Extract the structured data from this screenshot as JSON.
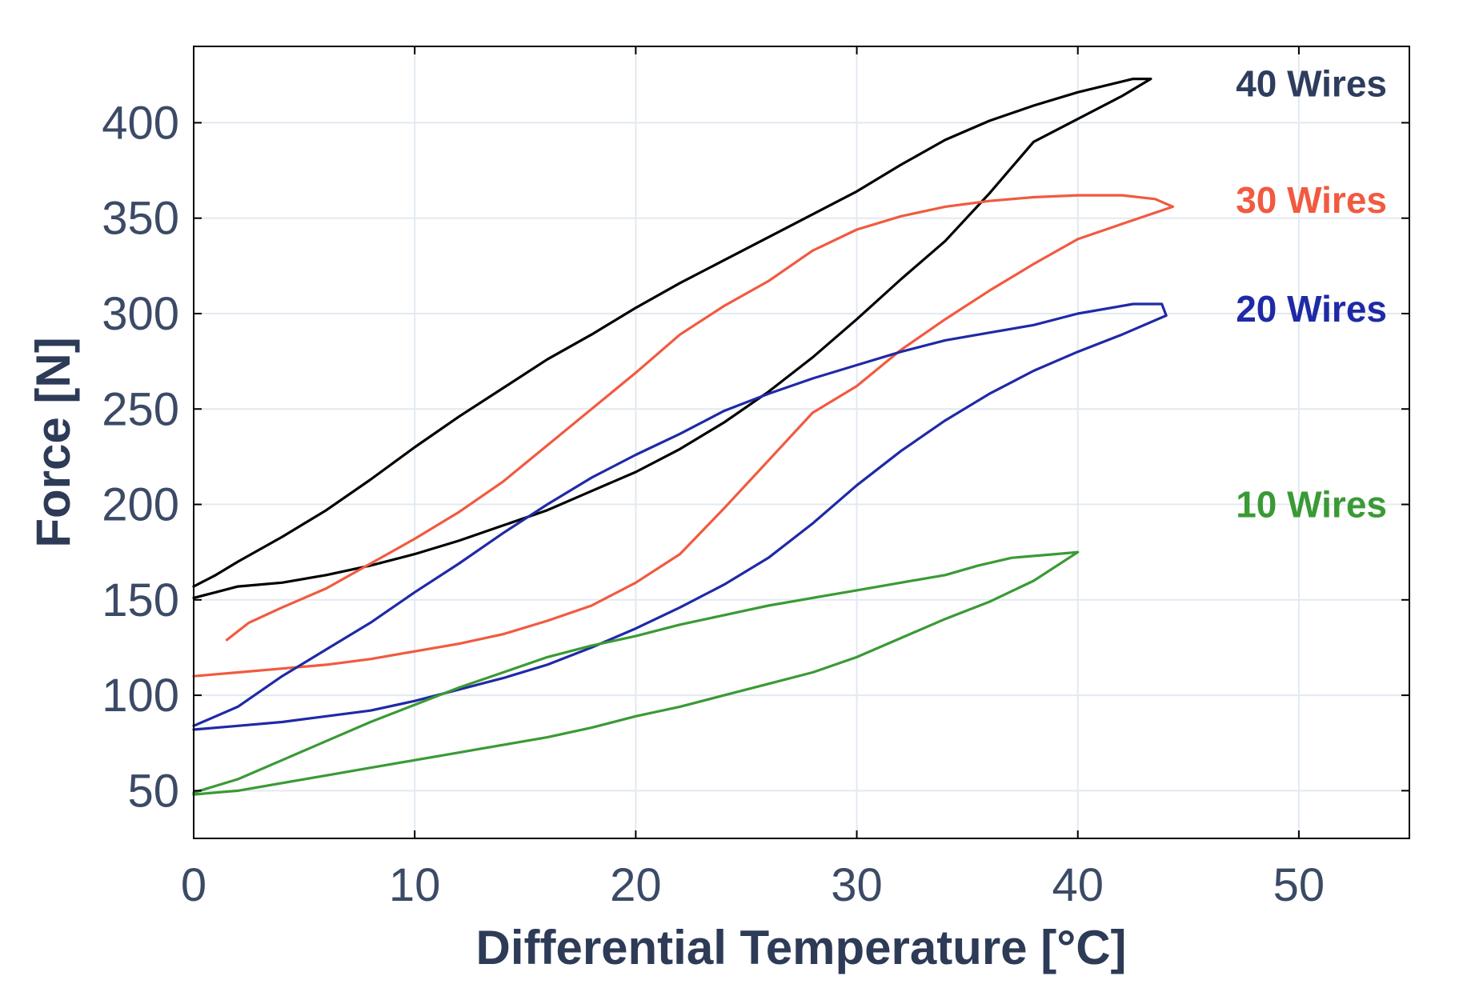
{
  "chart_data": {
    "type": "line",
    "title": "",
    "xlabel": "Differential Temperature [°C]",
    "ylabel": "Force [N]",
    "xlim": [
      0,
      55
    ],
    "ylim": [
      25,
      440
    ],
    "grid": true,
    "xticks": [
      0,
      10,
      20,
      30,
      40,
      50
    ],
    "yticks": [
      50,
      100,
      150,
      200,
      250,
      300,
      350,
      400
    ],
    "series": [
      {
        "name": "40 Wires",
        "color": "#000000",
        "label_color": "#2e3d5e",
        "points": [
          [
            0,
            151
          ],
          [
            1,
            154
          ],
          [
            2,
            157
          ],
          [
            4,
            159
          ],
          [
            6,
            163
          ],
          [
            8,
            168
          ],
          [
            10,
            174
          ],
          [
            12,
            181
          ],
          [
            14,
            189
          ],
          [
            16,
            197
          ],
          [
            18,
            207
          ],
          [
            20,
            217
          ],
          [
            22,
            229
          ],
          [
            24,
            243
          ],
          [
            26,
            259
          ],
          [
            28,
            277
          ],
          [
            30,
            297
          ],
          [
            32,
            318
          ],
          [
            34,
            338
          ],
          [
            36,
            363
          ],
          [
            38,
            390
          ],
          [
            40,
            402
          ],
          [
            42,
            414
          ],
          [
            43.3,
            423
          ],
          [
            42.5,
            423
          ],
          [
            40,
            416
          ],
          [
            38,
            409
          ],
          [
            36,
            401
          ],
          [
            34,
            391
          ],
          [
            32,
            378
          ],
          [
            30,
            364
          ],
          [
            28,
            352
          ],
          [
            26,
            340
          ],
          [
            24,
            328
          ],
          [
            22,
            316
          ],
          [
            20,
            303
          ],
          [
            18,
            289
          ],
          [
            16,
            276
          ],
          [
            14,
            261
          ],
          [
            12,
            246
          ],
          [
            10,
            230
          ],
          [
            8,
            213
          ],
          [
            6,
            197
          ],
          [
            4,
            183
          ],
          [
            2,
            170
          ],
          [
            1,
            163
          ],
          [
            0,
            157
          ]
        ]
      },
      {
        "name": "30 Wires",
        "color": "#f15a40",
        "label_color": "#f15a40",
        "points": [
          [
            0,
            110
          ],
          [
            2,
            112
          ],
          [
            4,
            114
          ],
          [
            6,
            116
          ],
          [
            8,
            119
          ],
          [
            10,
            123
          ],
          [
            12,
            127
          ],
          [
            14,
            132
          ],
          [
            16,
            139
          ],
          [
            18,
            147
          ],
          [
            20,
            159
          ],
          [
            22,
            174
          ],
          [
            24,
            198
          ],
          [
            26,
            223
          ],
          [
            28,
            248
          ],
          [
            30,
            262
          ],
          [
            32,
            281
          ],
          [
            34,
            297
          ],
          [
            36,
            312
          ],
          [
            38,
            326
          ],
          [
            40,
            339
          ],
          [
            42,
            347
          ],
          [
            44.3,
            356
          ],
          [
            43.5,
            360
          ],
          [
            42,
            362
          ],
          [
            40,
            362
          ],
          [
            38,
            361
          ],
          [
            36,
            359
          ],
          [
            34,
            356
          ],
          [
            32,
            351
          ],
          [
            30,
            344
          ],
          [
            28,
            333
          ],
          [
            26,
            317
          ],
          [
            24,
            304
          ],
          [
            22,
            289
          ],
          [
            20,
            269
          ],
          [
            18,
            250
          ],
          [
            16,
            231
          ],
          [
            14,
            212
          ],
          [
            12,
            196
          ],
          [
            10,
            182
          ],
          [
            8,
            169
          ],
          [
            6,
            156
          ],
          [
            4,
            146
          ],
          [
            2.5,
            138
          ],
          [
            1.5,
            129
          ]
        ]
      },
      {
        "name": "20 Wires",
        "color": "#1f2aa6",
        "label_color": "#1f2aa6",
        "points": [
          [
            0,
            82
          ],
          [
            2,
            84
          ],
          [
            4,
            86
          ],
          [
            6,
            89
          ],
          [
            8,
            92
          ],
          [
            10,
            97
          ],
          [
            12,
            103
          ],
          [
            14,
            109
          ],
          [
            16,
            116
          ],
          [
            18,
            125
          ],
          [
            20,
            135
          ],
          [
            22,
            146
          ],
          [
            24,
            158
          ],
          [
            26,
            172
          ],
          [
            28,
            190
          ],
          [
            30,
            210
          ],
          [
            32,
            228
          ],
          [
            34,
            244
          ],
          [
            36,
            258
          ],
          [
            38,
            270
          ],
          [
            40,
            280
          ],
          [
            42,
            289
          ],
          [
            44,
            299
          ],
          [
            43.8,
            305
          ],
          [
            42.5,
            305
          ],
          [
            40,
            300
          ],
          [
            38,
            294
          ],
          [
            36,
            290
          ],
          [
            34,
            286
          ],
          [
            32,
            280
          ],
          [
            30,
            273
          ],
          [
            28,
            266
          ],
          [
            26,
            258
          ],
          [
            24,
            249
          ],
          [
            22,
            237
          ],
          [
            20,
            226
          ],
          [
            18,
            214
          ],
          [
            16,
            200
          ],
          [
            14,
            185
          ],
          [
            12,
            169
          ],
          [
            10,
            154
          ],
          [
            8,
            138
          ],
          [
            6,
            124
          ],
          [
            4,
            110
          ],
          [
            2,
            94
          ],
          [
            0,
            84
          ]
        ]
      },
      {
        "name": "10 Wires",
        "color": "#3a9a35",
        "label_color": "#3a9a35",
        "points": [
          [
            0,
            48
          ],
          [
            2,
            50
          ],
          [
            4,
            54
          ],
          [
            6,
            58
          ],
          [
            8,
            62
          ],
          [
            10,
            66
          ],
          [
            12,
            70
          ],
          [
            14,
            74
          ],
          [
            16,
            78
          ],
          [
            18,
            83
          ],
          [
            20,
            89
          ],
          [
            22,
            94
          ],
          [
            24,
            100
          ],
          [
            26,
            106
          ],
          [
            28,
            112
          ],
          [
            30,
            120
          ],
          [
            32,
            130
          ],
          [
            34,
            140
          ],
          [
            36,
            149
          ],
          [
            38,
            160
          ],
          [
            40,
            175
          ],
          [
            39,
            174
          ],
          [
            37,
            172
          ],
          [
            35.5,
            168
          ],
          [
            34,
            163
          ],
          [
            32,
            159
          ],
          [
            30,
            155
          ],
          [
            28,
            151
          ],
          [
            26,
            147
          ],
          [
            24,
            142
          ],
          [
            22,
            137
          ],
          [
            20,
            131
          ],
          [
            18,
            126
          ],
          [
            16,
            120
          ],
          [
            14,
            112
          ],
          [
            12,
            104
          ],
          [
            10,
            95
          ],
          [
            8,
            86
          ],
          [
            6,
            76
          ],
          [
            4,
            66
          ],
          [
            2,
            56
          ],
          [
            0,
            49
          ]
        ]
      }
    ],
    "series_labels": [
      "40 Wires",
      "30 Wires",
      "20 Wires",
      "10 Wires"
    ]
  }
}
